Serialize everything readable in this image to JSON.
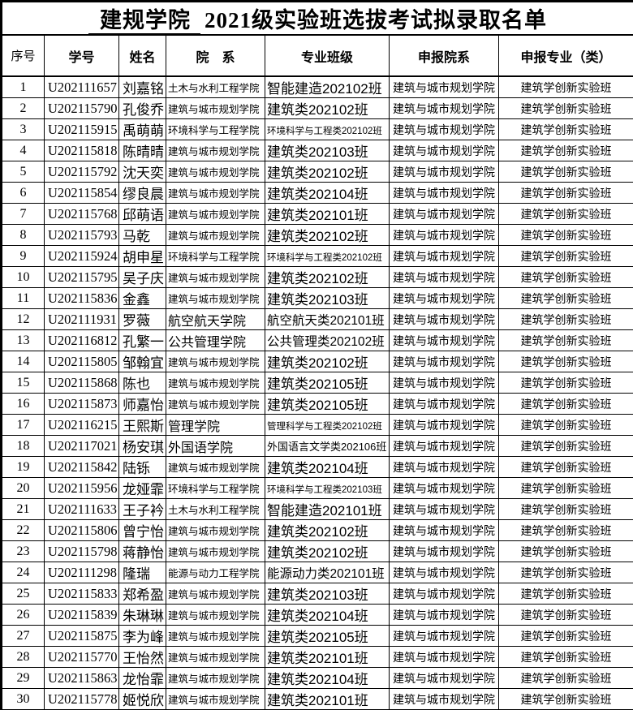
{
  "title": {
    "underlined": "建规学院",
    "rest": "2021级实验班选拔考试拟录取名单"
  },
  "table": {
    "columns": [
      {
        "key": "index",
        "label": "序号"
      },
      {
        "key": "student_id",
        "label": "学号"
      },
      {
        "key": "name",
        "label": "姓名"
      },
      {
        "key": "department",
        "label": "院　系"
      },
      {
        "key": "major_class",
        "label": "专业班级"
      },
      {
        "key": "applied_department",
        "label": "申报院系"
      },
      {
        "key": "applied_major",
        "label": "申报专业（类）"
      }
    ],
    "rows": [
      {
        "index": "1",
        "student_id": "U202111657",
        "name": "刘嘉铭",
        "department": "土木与水利工程学院",
        "major_class": "智能建造202102班",
        "applied_department": "建筑与城市规划学院",
        "applied_major": "建筑学创新实验班"
      },
      {
        "index": "2",
        "student_id": "U202115790",
        "name": "孔俊乔",
        "department": "建筑与城市规划学院",
        "major_class": "建筑类202102班",
        "applied_department": "建筑与城市规划学院",
        "applied_major": "建筑学创新实验班"
      },
      {
        "index": "3",
        "student_id": "U202115915",
        "name": "禹萌萌",
        "department": "环境科学与工程学院",
        "major_class": "环境科学与工程类202102班",
        "applied_department": "建筑与城市规划学院",
        "applied_major": "建筑学创新实验班"
      },
      {
        "index": "4",
        "student_id": "U202115818",
        "name": "陈晴晴",
        "department": "建筑与城市规划学院",
        "major_class": "建筑类202103班",
        "applied_department": "建筑与城市规划学院",
        "applied_major": "建筑学创新实验班"
      },
      {
        "index": "5",
        "student_id": "U202115792",
        "name": "沈天奕",
        "department": "建筑与城市规划学院",
        "major_class": "建筑类202102班",
        "applied_department": "建筑与城市规划学院",
        "applied_major": "建筑学创新实验班"
      },
      {
        "index": "6",
        "student_id": "U202115854",
        "name": "缪良晨",
        "department": "建筑与城市规划学院",
        "major_class": "建筑类202104班",
        "applied_department": "建筑与城市规划学院",
        "applied_major": "建筑学创新实验班"
      },
      {
        "index": "7",
        "student_id": "U202115768",
        "name": "邱萌语",
        "department": "建筑与城市规划学院",
        "major_class": "建筑类202101班",
        "applied_department": "建筑与城市规划学院",
        "applied_major": "建筑学创新实验班"
      },
      {
        "index": "8",
        "student_id": "U202115793",
        "name": "马乾",
        "department": "建筑与城市规划学院",
        "major_class": "建筑类202102班",
        "applied_department": "建筑与城市规划学院",
        "applied_major": "建筑学创新实验班"
      },
      {
        "index": "9",
        "student_id": "U202115924",
        "name": "胡申星",
        "department": "环境科学与工程学院",
        "major_class": "环境科学与工程类202102班",
        "applied_department": "建筑与城市规划学院",
        "applied_major": "建筑学创新实验班"
      },
      {
        "index": "10",
        "student_id": "U202115795",
        "name": "吴子庆",
        "department": "建筑与城市规划学院",
        "major_class": "建筑类202102班",
        "applied_department": "建筑与城市规划学院",
        "applied_major": "建筑学创新实验班"
      },
      {
        "index": "11",
        "student_id": "U202115836",
        "name": "金鑫",
        "department": "建筑与城市规划学院",
        "major_class": "建筑类202103班",
        "applied_department": "建筑与城市规划学院",
        "applied_major": "建筑学创新实验班"
      },
      {
        "index": "12",
        "student_id": "U202111931",
        "name": "罗薇",
        "department": "航空航天学院",
        "major_class": "航空航天类202101班",
        "applied_department": "建筑与城市规划学院",
        "applied_major": "建筑学创新实验班"
      },
      {
        "index": "13",
        "student_id": "U202116812",
        "name": "孔繁一",
        "department": "公共管理学院",
        "major_class": "公共管理类202102班",
        "applied_department": "建筑与城市规划学院",
        "applied_major": "建筑学创新实验班"
      },
      {
        "index": "14",
        "student_id": "U202115805",
        "name": "邹翰宜",
        "department": "建筑与城市规划学院",
        "major_class": "建筑类202102班",
        "applied_department": "建筑与城市规划学院",
        "applied_major": "建筑学创新实验班"
      },
      {
        "index": "15",
        "student_id": "U202115868",
        "name": "陈也",
        "department": "建筑与城市规划学院",
        "major_class": "建筑类202105班",
        "applied_department": "建筑与城市规划学院",
        "applied_major": "建筑学创新实验班"
      },
      {
        "index": "16",
        "student_id": "U202115873",
        "name": "师嘉怡",
        "department": "建筑与城市规划学院",
        "major_class": "建筑类202105班",
        "applied_department": "建筑与城市规划学院",
        "applied_major": "建筑学创新实验班"
      },
      {
        "index": "17",
        "student_id": "U202116215",
        "name": "王熙斯",
        "department": "管理学院",
        "major_class": "管理科学与工程类202102班",
        "applied_department": "建筑与城市规划学院",
        "applied_major": "建筑学创新实验班"
      },
      {
        "index": "18",
        "student_id": "U202117021",
        "name": "杨安琪",
        "department": "外国语学院",
        "major_class": "外国语言文学类202106班",
        "applied_department": "建筑与城市规划学院",
        "applied_major": "建筑学创新实验班"
      },
      {
        "index": "19",
        "student_id": "U202115842",
        "name": "陆铄",
        "department": "建筑与城市规划学院",
        "major_class": "建筑类202104班",
        "applied_department": "建筑与城市规划学院",
        "applied_major": "建筑学创新实验班"
      },
      {
        "index": "20",
        "student_id": "U202115956",
        "name": "龙娅霏",
        "department": "环境科学与工程学院",
        "major_class": "环境科学与工程类202103班",
        "applied_department": "建筑与城市规划学院",
        "applied_major": "建筑学创新实验班"
      },
      {
        "index": "21",
        "student_id": "U202111633",
        "name": "王子衿",
        "department": "土木与水利工程学院",
        "major_class": "智能建造202101班",
        "applied_department": "建筑与城市规划学院",
        "applied_major": "建筑学创新实验班"
      },
      {
        "index": "22",
        "student_id": "U202115806",
        "name": "曾宁怡",
        "department": "建筑与城市规划学院",
        "major_class": "建筑类202102班",
        "applied_department": "建筑与城市规划学院",
        "applied_major": "建筑学创新实验班"
      },
      {
        "index": "23",
        "student_id": "U202115798",
        "name": "蒋静怡",
        "department": "建筑与城市规划学院",
        "major_class": "建筑类202102班",
        "applied_department": "建筑与城市规划学院",
        "applied_major": "建筑学创新实验班"
      },
      {
        "index": "24",
        "student_id": "U202111298",
        "name": "隆瑞",
        "department": "能源与动力工程学院",
        "major_class": "能源动力类202101班",
        "applied_department": "建筑与城市规划学院",
        "applied_major": "建筑学创新实验班"
      },
      {
        "index": "25",
        "student_id": "U202115833",
        "name": "郑希盈",
        "department": "建筑与城市规划学院",
        "major_class": "建筑类202103班",
        "applied_department": "建筑与城市规划学院",
        "applied_major": "建筑学创新实验班"
      },
      {
        "index": "26",
        "student_id": "U202115839",
        "name": "朱琳琳",
        "department": "建筑与城市规划学院",
        "major_class": "建筑类202104班",
        "applied_department": "建筑与城市规划学院",
        "applied_major": "建筑学创新实验班"
      },
      {
        "index": "27",
        "student_id": "U202115875",
        "name": "李为峰",
        "department": "建筑与城市规划学院",
        "major_class": "建筑类202105班",
        "applied_department": "建筑与城市规划学院",
        "applied_major": "建筑学创新实验班"
      },
      {
        "index": "28",
        "student_id": "U202115770",
        "name": "王怡然",
        "department": "建筑与城市规划学院",
        "major_class": "建筑类202101班",
        "applied_department": "建筑与城市规划学院",
        "applied_major": "建筑学创新实验班"
      },
      {
        "index": "29",
        "student_id": "U202115863",
        "name": "龙怡霏",
        "department": "建筑与城市规划学院",
        "major_class": "建筑类202104班",
        "applied_department": "建筑与城市规划学院",
        "applied_major": "建筑学创新实验班"
      },
      {
        "index": "30",
        "student_id": "U202115778",
        "name": "姬悦欣",
        "department": "建筑与城市规划学院",
        "major_class": "建筑类202101班",
        "applied_department": "建筑与城市规划学院",
        "applied_major": "建筑学创新实验班"
      }
    ]
  }
}
